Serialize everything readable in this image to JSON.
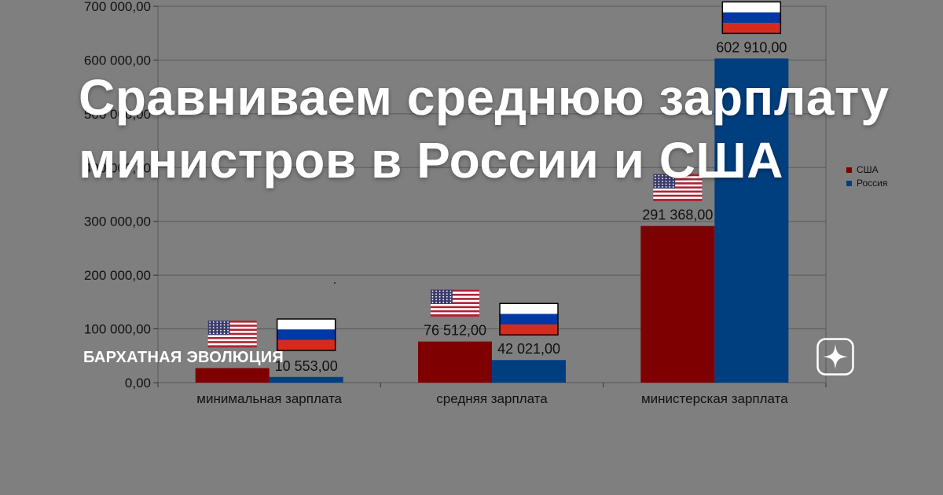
{
  "headline": {
    "line1": "Сравниваем среднюю зарплату",
    "line2": "министров в России и США"
  },
  "channel_name": "БАРХАТНАЯ ЭВОЛЮЦИЯ",
  "brand_icon": "sparkle-star-icon",
  "colors": {
    "background": "#7f7f7f",
    "usa": "#7f0000",
    "russia": "#003f7f",
    "text_overlay": "#ffffff"
  },
  "chart_data": {
    "type": "bar",
    "categories": [
      "минимальная зарплата",
      "средняя зарплата",
      "министерская зарплата"
    ],
    "series": [
      {
        "name": "США",
        "values": [
          27000,
          76512,
          291368
        ],
        "labels": [
          "",
          "76 512,00",
          "291 368,00"
        ],
        "color": "#7f0000",
        "flag": "usa-flag-icon"
      },
      {
        "name": "Россия",
        "values": [
          10553,
          42021,
          602910
        ],
        "labels": [
          "10 553,00",
          "42 021,00",
          "602 910,00"
        ],
        "color": "#003f7f",
        "flag": "russia-flag-icon"
      }
    ],
    "ylim": [
      0,
      700000
    ],
    "y_ticks": [
      0,
      100000,
      200000,
      300000,
      400000,
      500000,
      600000,
      700000
    ],
    "y_tick_labels": [
      "0,00",
      "100 000,00",
      "200 000,00",
      "300 000,00",
      "400 000,00",
      "500 000,00",
      "600 000,00",
      "700 000,00"
    ],
    "grid": true,
    "legend_position": "right"
  }
}
